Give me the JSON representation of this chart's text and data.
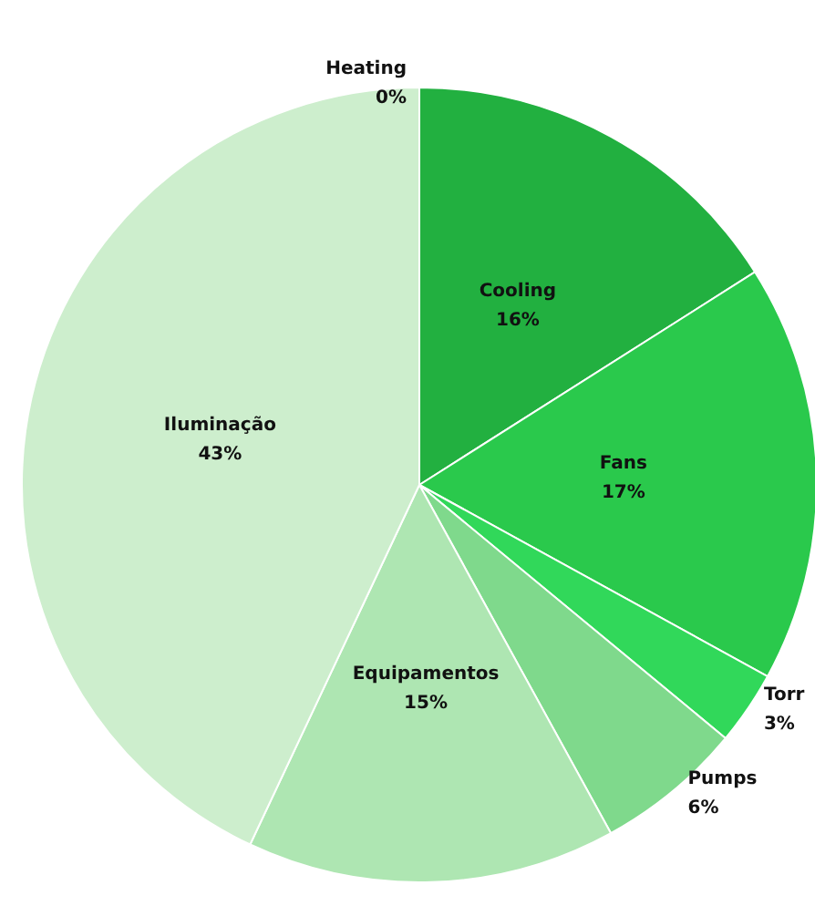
{
  "chart_data": {
    "type": "pie",
    "categories": [
      "Heating",
      "Cooling",
      "Fans",
      "Torr",
      "Pumps",
      "Equipamentos",
      "Iluminação"
    ],
    "values": [
      0,
      16,
      17,
      3,
      6,
      15,
      43
    ],
    "value_labels": [
      "0%",
      "16%",
      "17%",
      "3%",
      "6%",
      "15%",
      "43%"
    ],
    "colors": [
      "#1a9a35",
      "#22b040",
      "#2ac94c",
      "#31d85a",
      "#7fd98c",
      "#aee6b2",
      "#cdeecd"
    ],
    "legend": false
  }
}
